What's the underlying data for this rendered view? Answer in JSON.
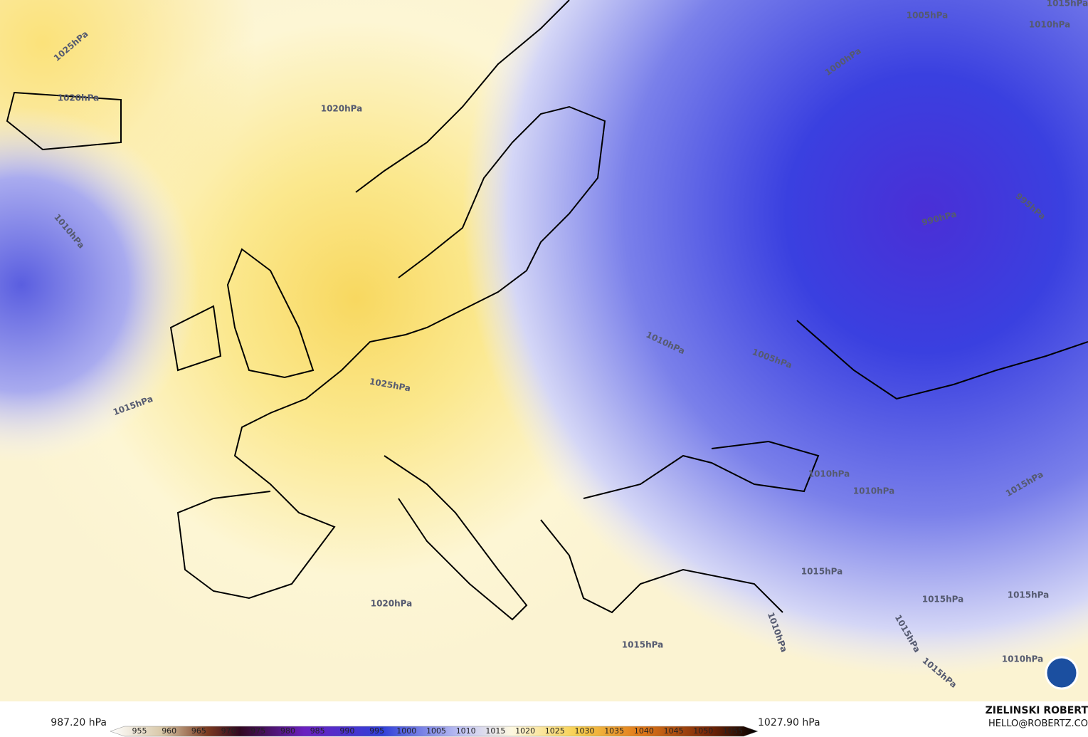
{
  "map": {
    "isobar_labels": [
      "1025hPa",
      "1020hPa",
      "1020hPa",
      "1010hPa",
      "1015hPa",
      "1025hPa",
      "1020hPa",
      "1015hPa",
      "1015hPa",
      "1010hPa",
      "1010hPa",
      "1010hPa",
      "1005hPa",
      "1005hPa",
      "1000hPa",
      "990hPa",
      "995hPa",
      "1010hPa",
      "1015hPa",
      "1015hPa",
      "1015hPa",
      "1015hPa",
      "1015hPa",
      "1015hPa",
      "1010hPa",
      "1010hPa"
    ]
  },
  "colorbar": {
    "min_label": "987.20 hPa",
    "max_label": "1027.90 hPa",
    "ticks": [
      "955",
      "960",
      "965",
      "970",
      "975",
      "980",
      "985",
      "990",
      "995",
      "1000",
      "1005",
      "1010",
      "1015",
      "1020",
      "1025",
      "1030",
      "1035",
      "1040",
      "1045",
      "1050",
      "1055"
    ]
  },
  "credit": {
    "name": "ZIELINSKI ROBERT",
    "email": "HELLO@ROBERTZ.CO"
  }
}
